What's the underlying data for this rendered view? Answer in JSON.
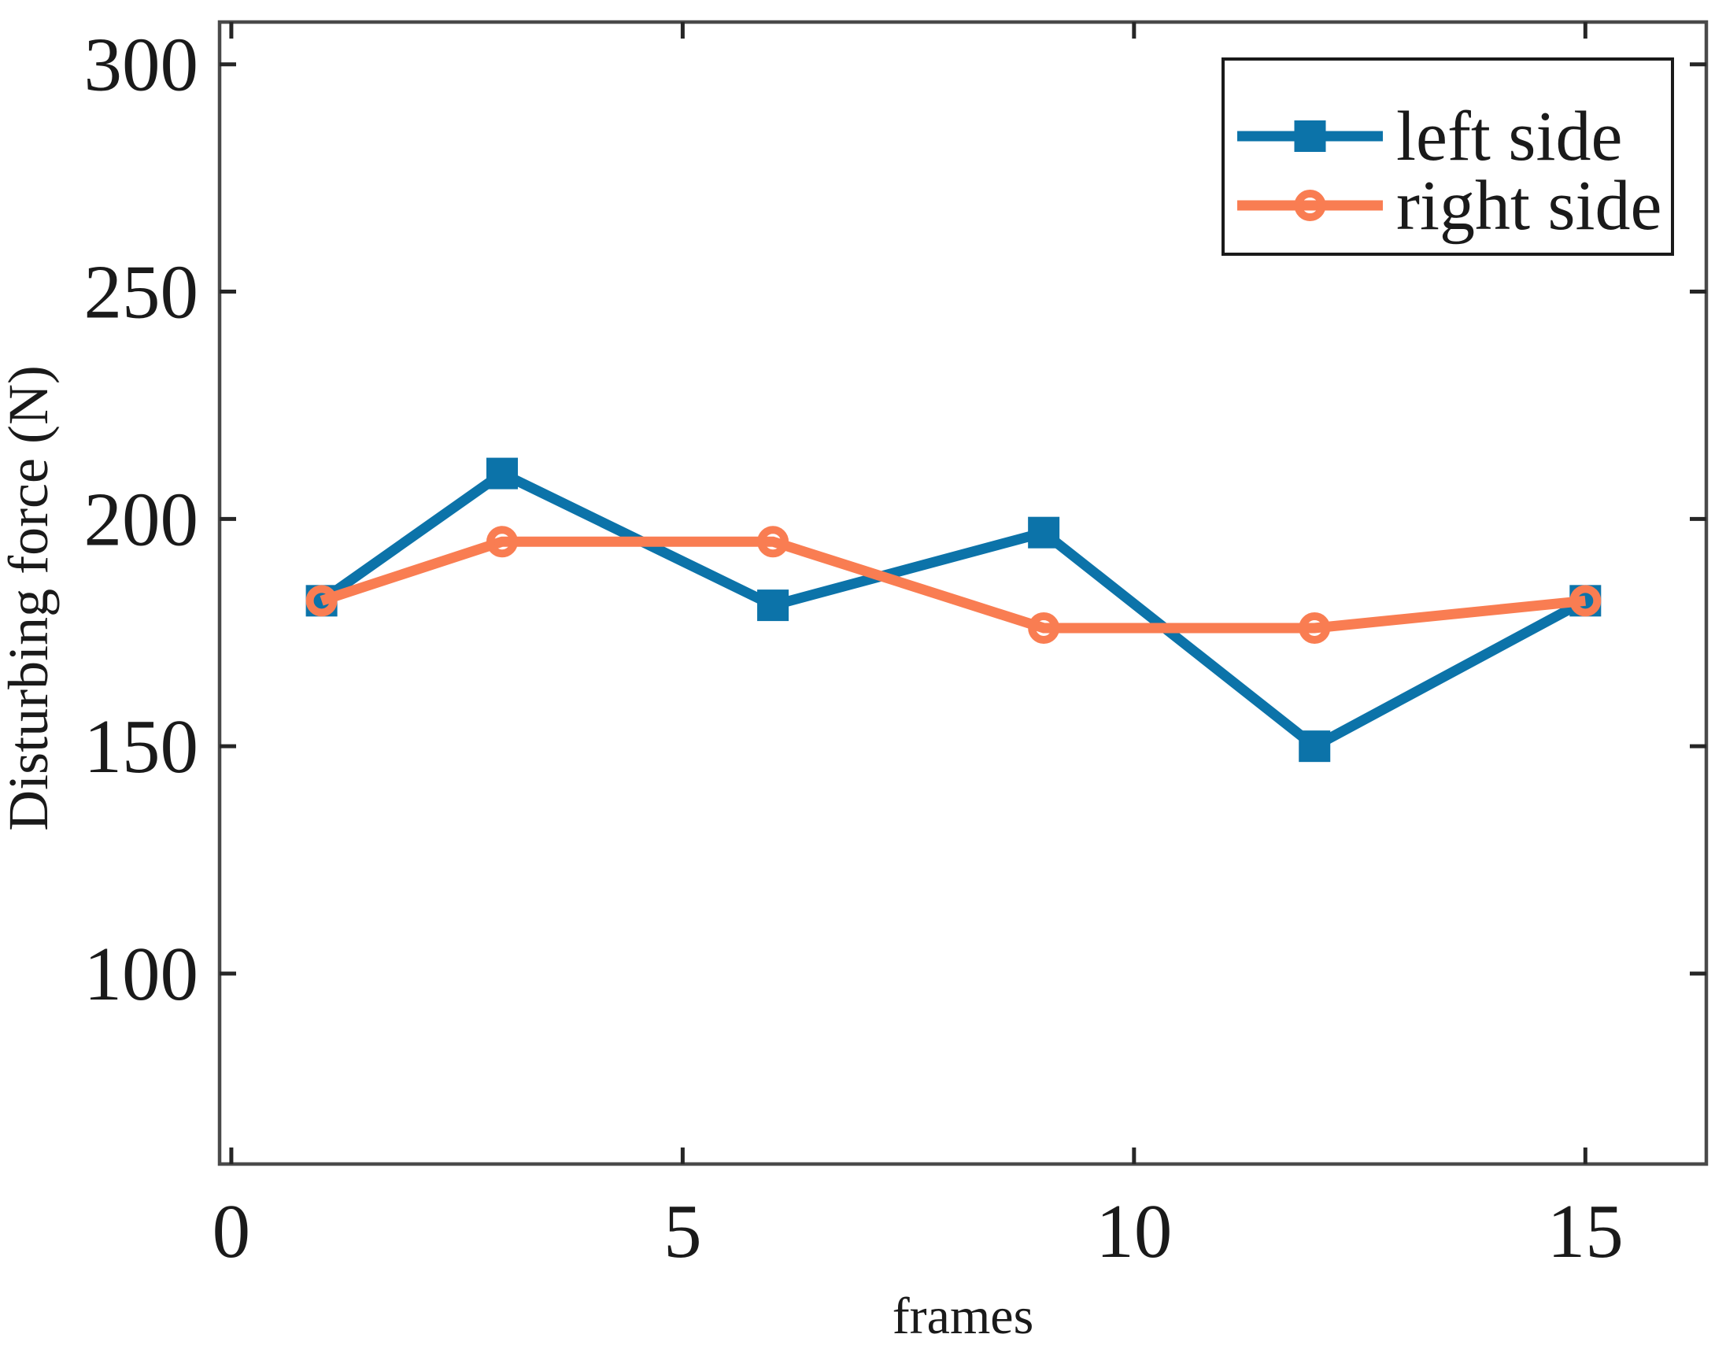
{
  "figure": {
    "background": "#ffffff",
    "xlabel": "frames",
    "ylabel": "Disturbing force (N)",
    "legend": {
      "position": "top-right",
      "entries": [
        {
          "label": "left side",
          "marker": "filled-square",
          "color": "#0c73a9"
        },
        {
          "label": "right side",
          "marker": "open-circle",
          "color": "#f97d52"
        }
      ]
    }
  },
  "chart_data": {
    "type": "line",
    "title": "",
    "xlabel": "frames",
    "ylabel": "Disturbing force (N)",
    "x": [
      1,
      3,
      6,
      9,
      12,
      15
    ],
    "series": [
      {
        "name": "left side",
        "color": "#0c73a9",
        "marker": "square",
        "values": [
          182,
          210,
          181,
          197,
          150,
          182
        ]
      },
      {
        "name": "right side",
        "color": "#f97d52",
        "marker": "circle-open",
        "values": [
          182,
          195,
          195,
          176,
          176,
          182
        ]
      }
    ],
    "xticks": [
      0,
      5,
      10,
      15
    ],
    "yticks": [
      100,
      150,
      200,
      250,
      300
    ],
    "xlim": [
      -0.13,
      16.34
    ],
    "ylim": [
      58.1,
      309.3
    ],
    "grid": false,
    "box": true,
    "legend_position": "top-right",
    "axis_color": "#4a4a4a",
    "tick_color": "#262626",
    "text_color": "#1a1a1a"
  }
}
